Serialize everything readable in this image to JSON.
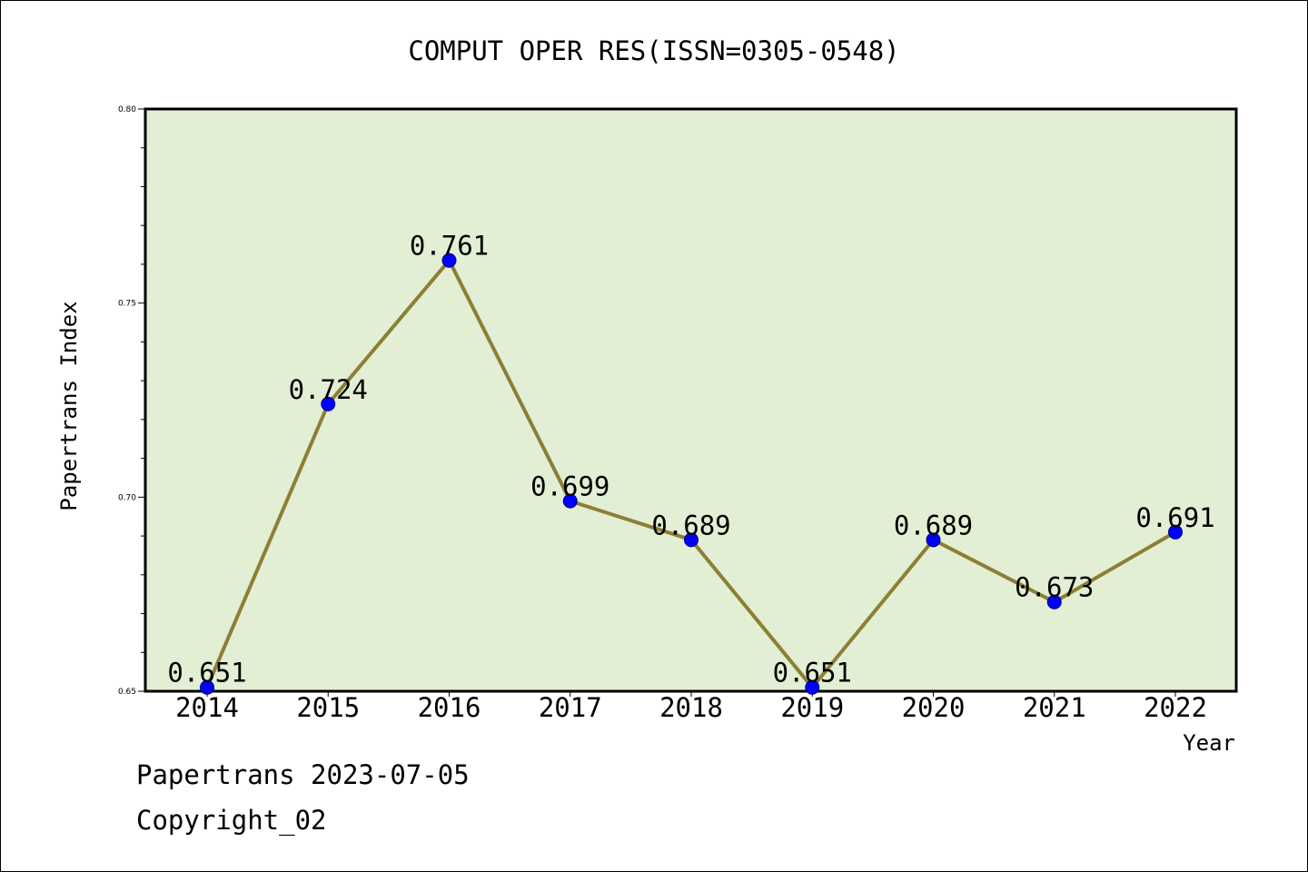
{
  "chart_data": {
    "type": "line",
    "title": "COMPUT OPER RES(ISSN=0305-0548)",
    "xlabel": "Year",
    "ylabel": "Papertrans Index",
    "categories": [
      "2014",
      "2015",
      "2016",
      "2017",
      "2018",
      "2019",
      "2020",
      "2021",
      "2022"
    ],
    "series": [
      {
        "values": [
          0.651,
          0.724,
          0.761,
          0.699,
          0.689,
          0.651,
          0.689,
          0.673,
          0.691
        ],
        "labels": [
          "0.651",
          "0.724",
          "0.761",
          "0.699",
          "0.689",
          "0.651",
          "0.689",
          "0.673",
          "0.691"
        ]
      }
    ],
    "ylim": [
      0.65,
      0.8
    ],
    "y_ticks": [
      "0.65",
      "0.70",
      "0.75",
      "0.80"
    ],
    "grid": false,
    "colors": {
      "plot_background": "#e2efd4",
      "line": "#8c7f35",
      "marker": "#0000ff"
    }
  },
  "footer": {
    "date_line": "Papertrans 2023-07-05",
    "copyright_line": "Copyright_02"
  }
}
